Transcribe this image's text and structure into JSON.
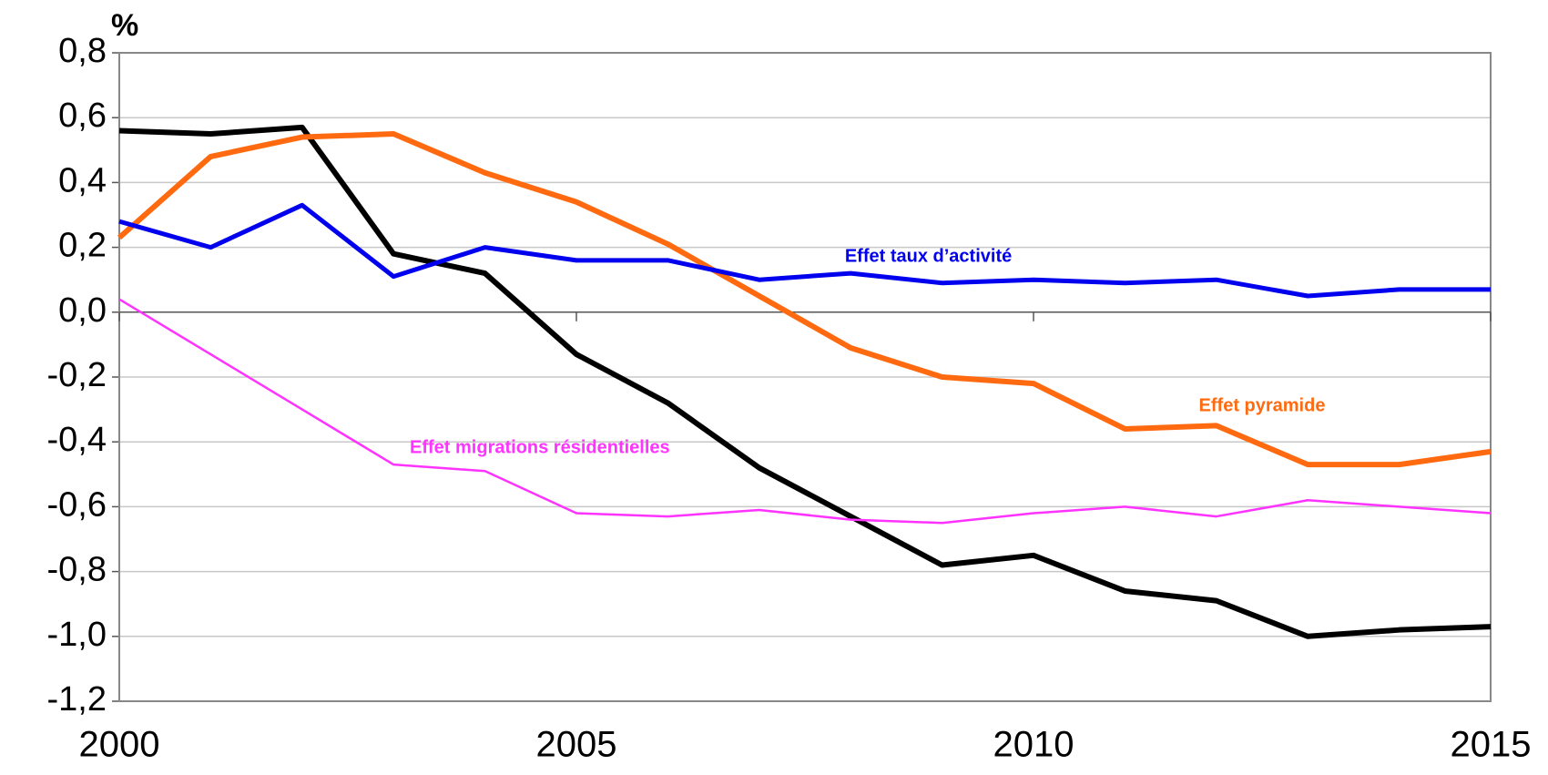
{
  "chart_data": {
    "type": "line",
    "y_label": "%",
    "x": [
      2000,
      2001,
      2002,
      2003,
      2004,
      2005,
      2006,
      2007,
      2008,
      2009,
      2010,
      2011,
      2012,
      2013,
      2014,
      2015
    ],
    "series": [
      {
        "color": "#000000",
        "values": [
          0.56,
          0.55,
          0.57,
          0.18,
          0.12,
          -0.13,
          -0.28,
          -0.48,
          -0.63,
          -0.78,
          -0.75,
          -0.86,
          -0.89,
          -1.0,
          -0.98,
          -0.97
        ]
      },
      {
        "name": "Effet pyramide",
        "color": "#ff6a10",
        "values": [
          0.23,
          0.48,
          0.54,
          0.55,
          0.43,
          0.34,
          0.21,
          0.05,
          -0.11,
          -0.2,
          -0.22,
          -0.36,
          -0.35,
          -0.47,
          -0.47,
          -0.43
        ]
      },
      {
        "name": "Effet taux d’activité",
        "color": "#0000ee",
        "values": [
          0.28,
          0.2,
          0.33,
          0.11,
          0.2,
          0.16,
          0.16,
          0.1,
          0.12,
          0.09,
          0.1,
          0.09,
          0.1,
          0.05,
          0.07,
          0.07
        ]
      },
      {
        "name": "Effet migrations résidentielles",
        "color": "#ff33ff",
        "values": [
          0.04,
          -0.13,
          -0.3,
          -0.47,
          -0.49,
          -0.62,
          -0.63,
          -0.61,
          -0.64,
          -0.65,
          -0.62,
          -0.6,
          -0.63,
          -0.58,
          -0.6,
          -0.62
        ]
      }
    ],
    "xlim": [
      2000,
      2015
    ],
    "xticks": [
      2000,
      2005,
      2010,
      2015
    ],
    "ylim": [
      -1.2,
      0.8
    ],
    "yticks": [
      {
        "value": -1.2,
        "label": "-1,2"
      },
      {
        "value": -1.0,
        "label": "-1,0"
      },
      {
        "value": -0.8,
        "label": "-0,8"
      },
      {
        "value": -0.6,
        "label": "-0,6"
      },
      {
        "value": -0.4,
        "label": "-0,4"
      },
      {
        "value": -0.2,
        "label": "-0,2"
      },
      {
        "value": 0,
        "label": "0,0"
      },
      {
        "value": 0.2,
        "label": "0,2"
      },
      {
        "value": 0.4,
        "label": "0,4"
      },
      {
        "value": 0.6,
        "label": "0,6"
      },
      {
        "value": 0.8,
        "label": "0,8"
      }
    ],
    "grid": true
  }
}
